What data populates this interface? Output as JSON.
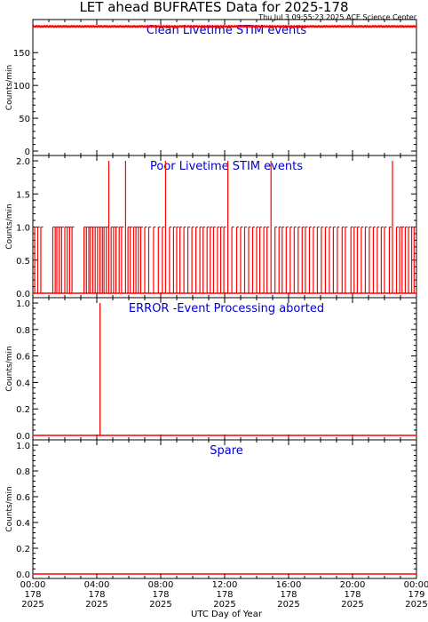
{
  "title": "LET ahead BUFRATES Data for 2025-178",
  "timestamp": "Thu Jul  3 09:55:23 2025 ACE Science Center",
  "xlabel": "UTC Day of Year",
  "xticks": [
    {
      "hour": 0,
      "time": "00:00",
      "doy": "178",
      "year": "2025"
    },
    {
      "hour": 4,
      "time": "04:00",
      "doy": "178",
      "year": "2025"
    },
    {
      "hour": 8,
      "time": "08:00",
      "doy": "178",
      "year": "2025"
    },
    {
      "hour": 12,
      "time": "12:00",
      "doy": "178",
      "year": "2025"
    },
    {
      "hour": 16,
      "time": "16:00",
      "doy": "178",
      "year": "2025"
    },
    {
      "hour": 20,
      "time": "20:00",
      "doy": "178",
      "year": "2025"
    },
    {
      "hour": 24,
      "time": "00:00",
      "doy": "179",
      "year": "2025"
    }
  ],
  "colors": {
    "data": "#ff0000",
    "label": "#0000cc",
    "axis": "#000000"
  },
  "chart_data": [
    {
      "type": "line",
      "title": "Clean Livetime STIM events",
      "ylabel": "Counts/min",
      "xlim": [
        0,
        24
      ],
      "ylim": [
        0,
        195
      ],
      "yticks": [
        0,
        50,
        100,
        150
      ],
      "yticklabels": [
        "0",
        "50",
        "100",
        "150"
      ],
      "x_unit": "hours UTC",
      "baseline": 190,
      "points": [
        [
          0,
          190
        ],
        [
          24,
          190
        ]
      ]
    },
    {
      "type": "line",
      "title": "Poor Livetime STIM events",
      "ylabel": "Counts/min",
      "xlim": [
        0,
        24
      ],
      "ylim": [
        0,
        2
      ],
      "yticks": [
        0,
        0.5,
        1,
        1.5,
        2
      ],
      "yticklabels": [
        "0.0",
        "0.5",
        "1.0",
        "1.5",
        "2.0"
      ],
      "x_unit": "hours UTC",
      "baseline": 0,
      "spikes": [
        [
          0.12,
          1
        ],
        [
          0.3,
          1
        ],
        [
          0.5,
          1
        ],
        [
          1.25,
          1
        ],
        [
          1.4,
          1
        ],
        [
          1.5,
          1
        ],
        [
          1.65,
          1
        ],
        [
          1.8,
          1
        ],
        [
          2.0,
          1
        ],
        [
          2.15,
          1
        ],
        [
          2.3,
          1
        ],
        [
          2.45,
          1
        ],
        [
          3.2,
          1
        ],
        [
          3.35,
          1
        ],
        [
          3.5,
          1
        ],
        [
          3.6,
          1
        ],
        [
          3.75,
          1
        ],
        [
          3.9,
          1
        ],
        [
          4.05,
          1
        ],
        [
          4.2,
          1
        ],
        [
          4.35,
          1
        ],
        [
          4.45,
          1
        ],
        [
          4.6,
          1
        ],
        [
          4.75,
          2
        ],
        [
          4.9,
          1
        ],
        [
          5.05,
          1
        ],
        [
          5.2,
          1
        ],
        [
          5.4,
          1
        ],
        [
          5.55,
          1
        ],
        [
          5.8,
          2
        ],
        [
          5.95,
          1
        ],
        [
          6.1,
          1
        ],
        [
          6.3,
          1
        ],
        [
          6.45,
          1
        ],
        [
          6.6,
          1
        ],
        [
          6.75,
          1
        ],
        [
          7.0,
          1
        ],
        [
          7.25,
          1
        ],
        [
          7.55,
          1
        ],
        [
          7.85,
          1
        ],
        [
          8.1,
          1
        ],
        [
          8.3,
          2
        ],
        [
          8.55,
          1
        ],
        [
          8.8,
          1
        ],
        [
          9.0,
          1
        ],
        [
          9.2,
          1
        ],
        [
          9.45,
          1
        ],
        [
          9.7,
          1
        ],
        [
          9.95,
          1
        ],
        [
          10.2,
          1
        ],
        [
          10.45,
          1
        ],
        [
          10.65,
          1
        ],
        [
          10.9,
          1
        ],
        [
          11.1,
          1
        ],
        [
          11.3,
          1
        ],
        [
          11.55,
          1
        ],
        [
          11.75,
          1
        ],
        [
          11.95,
          1
        ],
        [
          12.2,
          2
        ],
        [
          12.45,
          1
        ],
        [
          12.75,
          1
        ],
        [
          13.0,
          1
        ],
        [
          13.25,
          1
        ],
        [
          13.5,
          1
        ],
        [
          13.75,
          1
        ],
        [
          14.0,
          1
        ],
        [
          14.2,
          1
        ],
        [
          14.45,
          1
        ],
        [
          14.65,
          1
        ],
        [
          14.9,
          2
        ],
        [
          15.15,
          1
        ],
        [
          15.4,
          1
        ],
        [
          15.6,
          1
        ],
        [
          15.85,
          1
        ],
        [
          16.1,
          1
        ],
        [
          16.35,
          1
        ],
        [
          16.6,
          1
        ],
        [
          16.85,
          1
        ],
        [
          17.05,
          1
        ],
        [
          17.3,
          1
        ],
        [
          17.55,
          1
        ],
        [
          17.8,
          1
        ],
        [
          18.05,
          1
        ],
        [
          18.3,
          1
        ],
        [
          18.55,
          1
        ],
        [
          18.8,
          1
        ],
        [
          19.05,
          1
        ],
        [
          19.35,
          1
        ],
        [
          19.55,
          1
        ],
        [
          19.9,
          1
        ],
        [
          20.1,
          1
        ],
        [
          20.3,
          1
        ],
        [
          20.55,
          1
        ],
        [
          20.8,
          1
        ],
        [
          21.05,
          1
        ],
        [
          21.3,
          1
        ],
        [
          21.55,
          1
        ],
        [
          21.8,
          1
        ],
        [
          22.0,
          1
        ],
        [
          22.3,
          1
        ],
        [
          22.5,
          2
        ],
        [
          22.75,
          1
        ],
        [
          22.95,
          1
        ],
        [
          23.1,
          1
        ],
        [
          23.3,
          1
        ],
        [
          23.5,
          1
        ],
        [
          23.7,
          1
        ],
        [
          23.85,
          1
        ]
      ]
    },
    {
      "type": "line",
      "title": "ERROR -Event Processing aborted",
      "ylabel": "Counts/min",
      "xlim": [
        0,
        24
      ],
      "ylim": [
        0,
        1
      ],
      "yticks": [
        0,
        0.2,
        0.4,
        0.6,
        0.8,
        1.0
      ],
      "yticklabels": [
        "0.0",
        "0.2",
        "0.4",
        "0.6",
        "0.8",
        "1.0"
      ],
      "x_unit": "hours UTC",
      "baseline": 0,
      "spikes": [
        [
          4.2,
          1
        ]
      ]
    },
    {
      "type": "line",
      "title": "Spare",
      "ylabel": "Counts/min",
      "xlim": [
        0,
        24
      ],
      "ylim": [
        0,
        1
      ],
      "yticks": [
        0,
        0.2,
        0.4,
        0.6,
        0.8,
        1.0
      ],
      "yticklabels": [
        "0.0",
        "0.2",
        "0.4",
        "0.6",
        "0.8",
        "1.0"
      ],
      "x_unit": "hours UTC",
      "baseline": 0,
      "spikes": []
    }
  ]
}
